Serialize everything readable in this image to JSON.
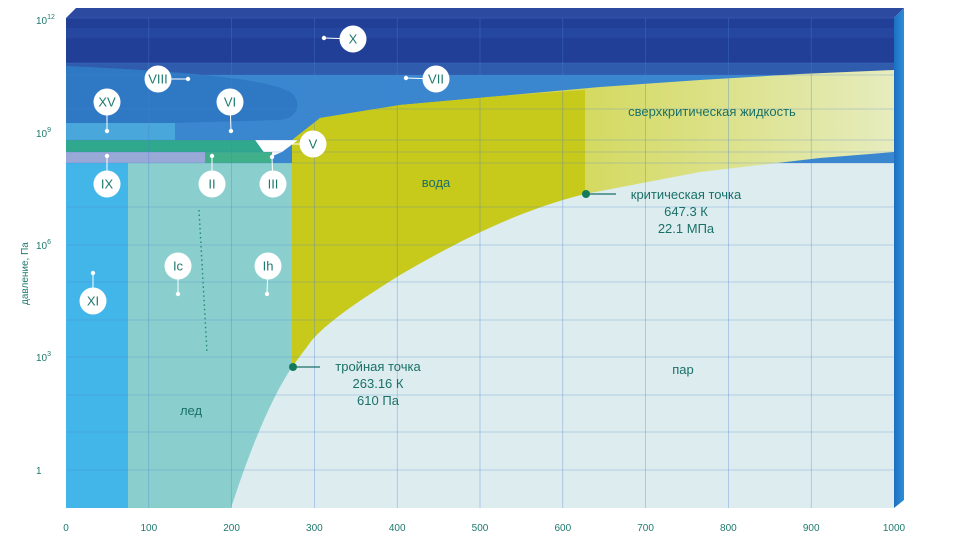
{
  "chart_data": {
    "type": "area",
    "title": "",
    "ylabel": "давление, Па",
    "xlabel": "",
    "x_ticks": [
      "0",
      "100",
      "200",
      "300",
      "400",
      "500",
      "600",
      "700",
      "800",
      "900",
      "1000"
    ],
    "y_ticks": [
      {
        "base": "1",
        "exp": ""
      },
      {
        "base": "10",
        "exp": "3"
      },
      {
        "base": "10",
        "exp": "6"
      },
      {
        "base": "10",
        "exp": "9"
      },
      {
        "base": "10",
        "exp": "12"
      }
    ],
    "grid": true,
    "regions": [
      {
        "id": "ice",
        "label": "лед"
      },
      {
        "id": "water",
        "label": "вода"
      },
      {
        "id": "vapor",
        "label": "пар"
      },
      {
        "id": "supercritical",
        "label": "сверхкритическая жидкость"
      }
    ],
    "annotations": [
      {
        "id": "critical",
        "lines": [
          "критическая точка",
          "647.3 К",
          "22.1 МПа"
        ]
      },
      {
        "id": "triple",
        "lines": [
          "тройная точка",
          "263.16 К",
          "610 Па"
        ]
      }
    ],
    "ice_phases": [
      "X",
      "VII",
      "VIII",
      "VI",
      "XV",
      "V",
      "IX",
      "II",
      "III",
      "Ic",
      "Ih",
      "XI"
    ]
  }
}
